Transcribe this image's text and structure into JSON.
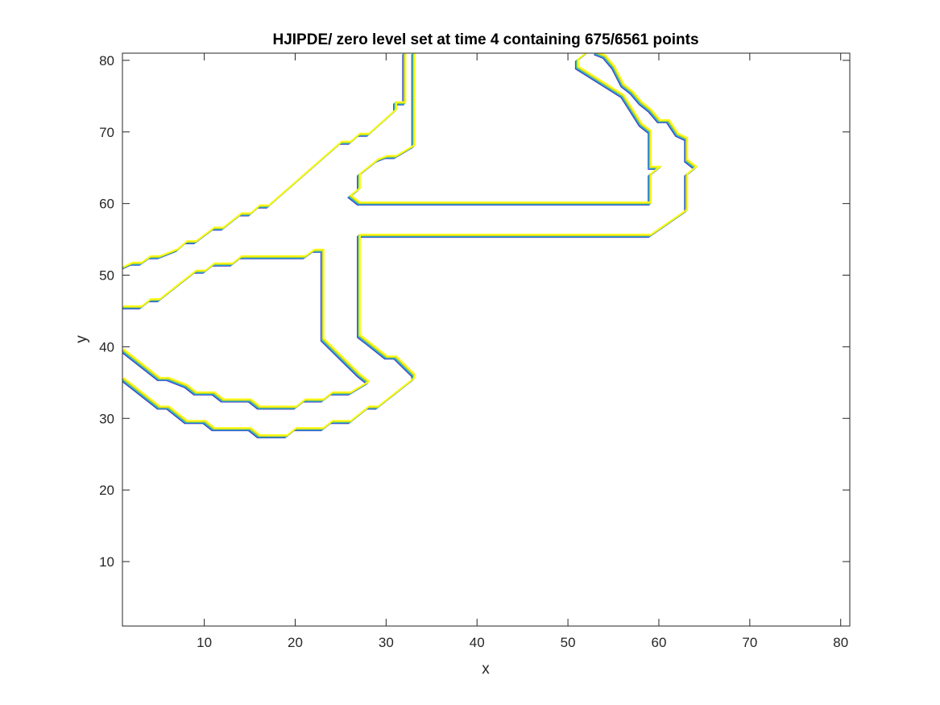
{
  "chart_data": {
    "type": "line",
    "title": "HJIPDE/ zero level set at time 4 containing 675/6561 points",
    "xlabel": "x",
    "ylabel": "y",
    "xlim": [
      1,
      81
    ],
    "ylim": [
      1,
      81
    ],
    "xticks": [
      10,
      20,
      30,
      40,
      50,
      60,
      70,
      80
    ],
    "yticks": [
      10,
      20,
      30,
      40,
      50,
      60,
      70,
      80
    ],
    "xtick_labels": [
      "10",
      "20",
      "30",
      "40",
      "50",
      "60",
      "70",
      "80"
    ],
    "ytick_labels": [
      "10",
      "20",
      "30",
      "40",
      "50",
      "60",
      "70",
      "80"
    ],
    "grid": false,
    "box": true,
    "band_colors": [
      "#3e26a8",
      "#2e87f7",
      "#16bbb2",
      "#8bcd4f",
      "#e4c32a",
      "#f9fb14"
    ],
    "series": [
      {
        "values": [
          [
            1,
            51
          ],
          [
            2,
            51.6
          ],
          [
            3,
            51.6
          ],
          [
            4,
            52.5
          ],
          [
            5,
            52.5
          ],
          [
            7,
            53.5
          ],
          [
            8,
            54.6
          ],
          [
            9,
            54.6
          ],
          [
            11,
            56.5
          ],
          [
            12,
            56.5
          ],
          [
            14,
            58.5
          ],
          [
            15,
            58.5
          ],
          [
            16,
            59.6
          ],
          [
            17,
            59.6
          ],
          [
            25,
            68.5
          ],
          [
            26,
            68.5
          ],
          [
            27,
            69.6
          ],
          [
            28,
            69.6
          ],
          [
            31,
            73
          ],
          [
            31,
            74
          ],
          [
            32,
            74
          ],
          [
            32,
            81
          ]
        ]
      },
      {
        "values": [
          [
            1,
            45.5
          ],
          [
            3,
            45.5
          ],
          [
            4,
            46.5
          ],
          [
            5,
            46.5
          ],
          [
            7,
            48.5
          ],
          [
            9,
            50.5
          ],
          [
            10,
            50.5
          ],
          [
            11,
            51.5
          ],
          [
            13,
            51.5
          ],
          [
            14,
            52.5
          ],
          [
            21,
            52.5
          ],
          [
            22,
            53.4
          ],
          [
            23,
            53.4
          ],
          [
            23,
            41
          ],
          [
            27,
            36
          ],
          [
            28,
            35
          ]
        ]
      },
      {
        "values": [
          [
            28,
            35
          ],
          [
            26,
            33.5
          ],
          [
            24,
            33.5
          ],
          [
            23,
            32.5
          ],
          [
            21,
            32.5
          ],
          [
            20,
            31.5
          ],
          [
            16,
            31.5
          ],
          [
            15,
            32.5
          ],
          [
            12,
            32.5
          ],
          [
            11,
            33.5
          ],
          [
            9,
            33.5
          ],
          [
            8,
            34.5
          ],
          [
            6,
            35.5
          ],
          [
            5,
            35.5
          ],
          [
            1,
            39.5
          ]
        ]
      },
      {
        "values": [
          [
            1,
            35.5
          ],
          [
            5,
            31.5
          ],
          [
            6,
            31.5
          ],
          [
            8,
            29.5
          ],
          [
            10,
            29.5
          ],
          [
            11,
            28.5
          ],
          [
            15,
            28.5
          ],
          [
            16,
            27.5
          ],
          [
            19,
            27.5
          ],
          [
            20,
            28.5
          ],
          [
            23,
            28.5
          ],
          [
            24,
            29.5
          ],
          [
            26,
            29.5
          ],
          [
            27,
            30.5
          ],
          [
            28,
            31.5
          ],
          [
            29,
            31.5
          ],
          [
            33,
            35.5
          ],
          [
            33,
            36
          ]
        ]
      },
      {
        "values": [
          [
            33,
            36
          ],
          [
            31,
            38.5
          ],
          [
            30,
            38.5
          ],
          [
            28,
            40.5
          ],
          [
            27,
            41.5
          ],
          [
            27,
            42.5
          ],
          [
            27,
            55.5
          ],
          [
            59,
            55.5
          ],
          [
            63,
            59
          ],
          [
            63,
            64
          ],
          [
            64,
            65
          ],
          [
            63,
            66
          ],
          [
            63,
            69
          ],
          [
            62,
            69.6
          ],
          [
            61,
            71.5
          ],
          [
            60,
            71.5
          ],
          [
            59,
            73
          ],
          [
            58,
            74
          ],
          [
            57,
            75.5
          ],
          [
            56,
            76.5
          ],
          [
            55,
            79
          ],
          [
            54,
            80.5
          ],
          [
            53,
            81
          ]
        ]
      },
      {
        "values": [
          [
            52,
            81
          ],
          [
            51,
            80
          ],
          [
            51,
            79
          ],
          [
            56,
            75
          ],
          [
            57,
            73
          ],
          [
            58,
            71
          ],
          [
            59,
            70
          ],
          [
            59,
            65
          ],
          [
            60,
            65
          ],
          [
            59,
            64
          ],
          [
            59,
            60
          ],
          [
            27,
            60
          ],
          [
            26,
            61
          ],
          [
            27,
            62
          ],
          [
            27,
            64
          ],
          [
            29,
            66
          ],
          [
            30,
            66.5
          ],
          [
            31,
            66.5
          ],
          [
            33,
            68
          ],
          [
            33,
            81
          ]
        ]
      }
    ]
  }
}
